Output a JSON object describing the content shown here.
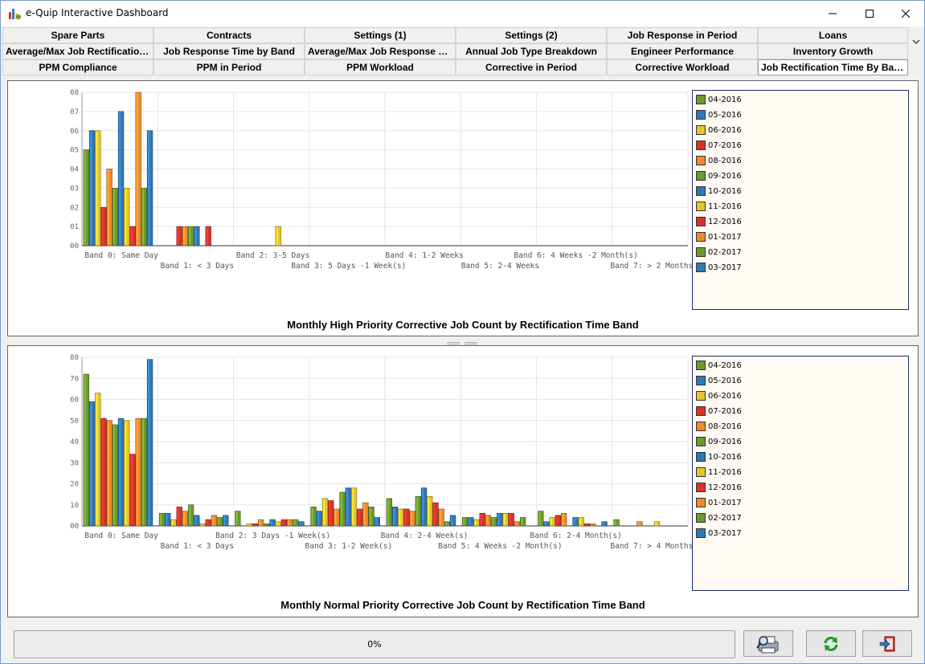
{
  "window": {
    "title": "e-Quip Interactive Dashboard",
    "minimize": "—",
    "maximize": "☐",
    "close": "✕"
  },
  "tabs": [
    [
      "Spare Parts",
      "Contracts",
      "Settings (1)",
      "Settings (2)",
      "Job Response in Period",
      "Loans"
    ],
    [
      "Average/Max Job Rectification Time",
      "Job Response Time by Band",
      "Average/Max Job Response Time",
      "Annual Job Type Breakdown",
      "Engineer Performance",
      "Inventory Growth"
    ],
    [
      "PPM Compliance",
      "PPM in Period",
      "PPM Workload",
      "Corrective in Period",
      "Corrective Workload",
      "Job Rectification Time By Band"
    ]
  ],
  "active_tab": "Job Rectification Time By Band",
  "legend": {
    "months": [
      "04-2016",
      "05-2016",
      "06-2016",
      "07-2016",
      "08-2016",
      "09-2016",
      "10-2016",
      "11-2016",
      "12-2016",
      "01-2017",
      "02-2017",
      "03-2017"
    ],
    "colors": [
      "#6b9a2f",
      "#2f78b8",
      "#e8c52a",
      "#d9322b",
      "#ef8a2a",
      "#6b9a2f",
      "#2f78b8",
      "#e8c52a",
      "#d9322b",
      "#ef8a2a",
      "#6b9a2f",
      "#2f78b8"
    ]
  },
  "chart_data": [
    {
      "type": "bar",
      "title": "Monthly High Priority Corrective Job Count by Rectification Time Band",
      "ytick_labels": [
        "00",
        "01",
        "02",
        "03",
        "04",
        "05",
        "06",
        "07",
        "08"
      ],
      "ylim": [
        0,
        8
      ],
      "categories": [
        "Band 0: Same Day",
        "Band 1: < 3 Days",
        "Band 2: 3-5 Days",
        "Band 3: 5 Days -1 Week(s)",
        "Band 4: 1-2 Weeks",
        "Band 5: 2-4 Weeks",
        "Band 6: 4 Weeks -2 Month(s)",
        "Band 7: > 2 Months"
      ],
      "values": [
        [
          5,
          6,
          6,
          2,
          4,
          3,
          7,
          3,
          1,
          8,
          3,
          6
        ],
        [
          0,
          0,
          0,
          1,
          1,
          1,
          1,
          0,
          1,
          0,
          0,
          0
        ],
        [
          0,
          0,
          0,
          0,
          0,
          0,
          0,
          1,
          0,
          0,
          0,
          0
        ],
        [
          0,
          0,
          0,
          0,
          0,
          0,
          0,
          0,
          0,
          0,
          0,
          0
        ],
        [
          0,
          0,
          0,
          0,
          0,
          0,
          0,
          0,
          0,
          0,
          0,
          0
        ],
        [
          0,
          0,
          0,
          0,
          0,
          0,
          0,
          0,
          0,
          0,
          0,
          0
        ],
        [
          0,
          0,
          0,
          0,
          0,
          0,
          0,
          0,
          0,
          0,
          0,
          0
        ],
        [
          0,
          0,
          0,
          0,
          0,
          0,
          0,
          0,
          0,
          0,
          0,
          0
        ]
      ]
    },
    {
      "type": "bar",
      "title": "Monthly Normal Priority Corrective Job Count by Rectification Time Band",
      "ytick_labels": [
        "00",
        "10",
        "20",
        "30",
        "40",
        "50",
        "60",
        "70",
        "80"
      ],
      "ylim": [
        0,
        80
      ],
      "categories": [
        "Band 0: Same Day",
        "Band 1: < 3 Days",
        "Band 2: 3 Days -1 Week(s)",
        "Band 3: 1-2 Week(s)",
        "Band 4: 2-4 Week(s)",
        "Band 5: 4 Weeks -2 Month(s)",
        "Band 6: 2-4 Month(s)",
        "Band 7: > 4 Months"
      ],
      "values": [
        [
          72,
          59,
          63,
          51,
          50,
          48,
          51,
          50,
          34,
          51,
          51,
          79
        ],
        [
          6,
          6,
          3,
          9,
          7,
          10,
          5,
          1,
          3,
          5,
          4,
          5
        ],
        [
          7,
          0,
          1,
          1,
          3,
          1,
          3,
          2,
          3,
          3,
          3,
          2
        ],
        [
          9,
          7,
          13,
          12,
          8,
          16,
          18,
          18,
          8,
          11,
          9,
          4
        ],
        [
          13,
          9,
          8,
          8,
          7,
          14,
          18,
          14,
          11,
          8,
          2,
          5
        ],
        [
          4,
          4,
          3,
          6,
          5,
          4,
          6,
          6,
          6,
          2,
          4,
          0
        ],
        [
          7,
          2,
          4,
          5,
          6,
          0,
          4,
          4,
          1,
          1,
          0,
          2
        ],
        [
          3,
          0,
          0,
          0,
          2,
          0,
          0,
          2,
          0,
          0,
          0,
          0
        ]
      ]
    }
  ],
  "footer": {
    "progress": "0%"
  }
}
